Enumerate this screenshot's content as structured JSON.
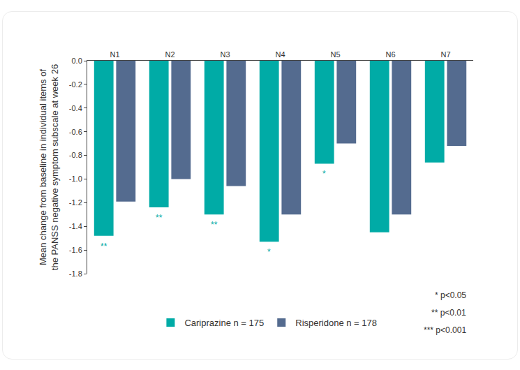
{
  "chart_data": {
    "type": "bar",
    "categories": [
      "N1",
      "N2",
      "N3",
      "N4",
      "N5",
      "N6",
      "N7"
    ],
    "series": [
      {
        "name": "Cariprazine n = 175",
        "color": "#00aba6",
        "values": [
          -1.48,
          -1.24,
          -1.3,
          -1.53,
          -0.87,
          -1.45,
          -0.86
        ]
      },
      {
        "name": "Risperidone n = 178",
        "color": "#546b8f",
        "values": [
          -1.19,
          -1.0,
          -1.06,
          -1.3,
          -0.7,
          -1.3,
          -0.72
        ]
      }
    ],
    "y_label": "Mean change from baseline in individual items of\nthe PANSS negative symptom subscale at week 26",
    "ylim": [
      -1.8,
      0
    ],
    "yticks": [
      {
        "value": 0,
        "label": "0.0"
      },
      -0.2,
      -0.4,
      -0.6,
      -0.8,
      {
        "value": -1,
        "label": "-1.0"
      },
      -1.2,
      -1.4,
      -1.6,
      -1.8
    ],
    "annotations": [
      {
        "category": "N1",
        "series": "Cariprazine n = 175",
        "text": "**"
      },
      {
        "category": "N2",
        "series": "Cariprazine n = 175",
        "text": "**"
      },
      {
        "category": "N3",
        "series": "Cariprazine n = 175",
        "text": "**"
      },
      {
        "category": "N4",
        "series": "Cariprazine n = 175",
        "text": "*"
      },
      {
        "category": "N5",
        "series": "Cariprazine n = 175",
        "text": "*"
      }
    ],
    "notes": [
      "* p<0.05",
      "** p<0.01",
      "*** p<0.001"
    ],
    "grid": false,
    "legend": "bottom"
  }
}
